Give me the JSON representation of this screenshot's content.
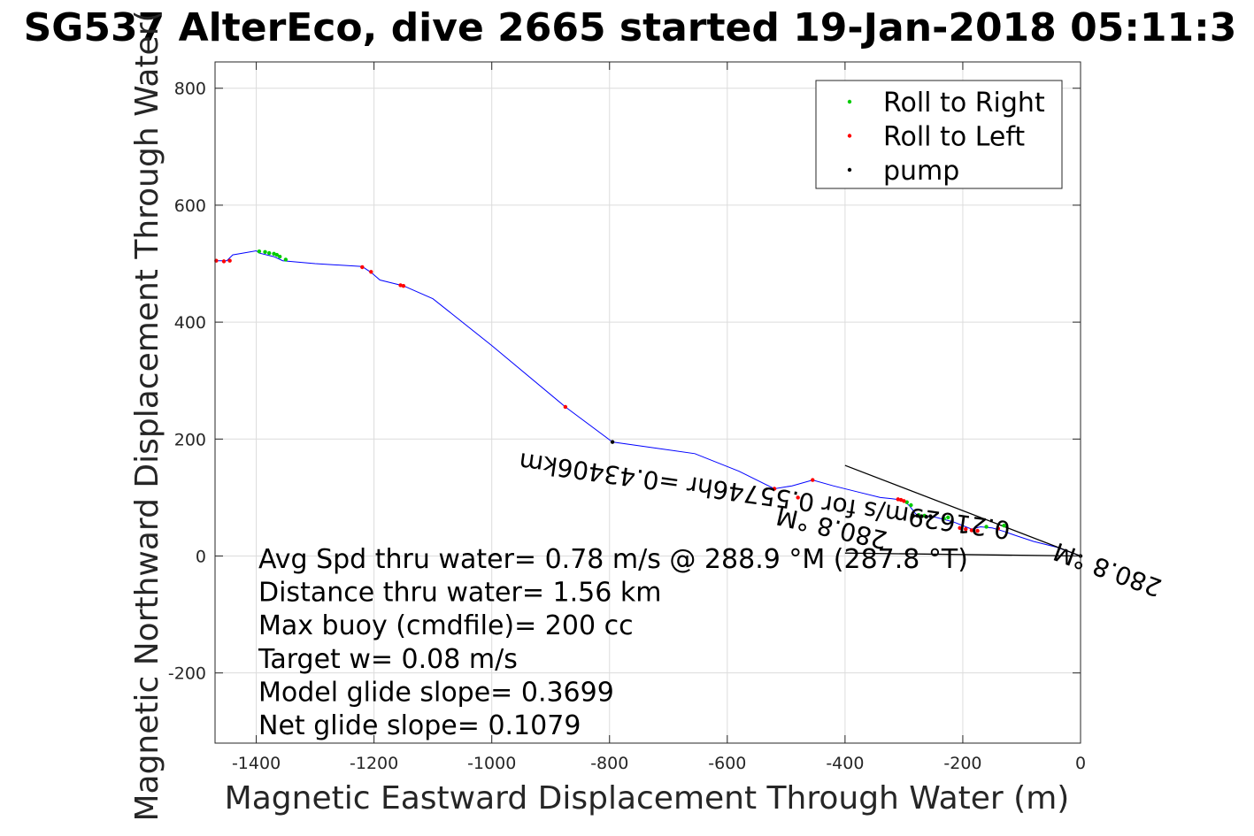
{
  "chart_data": {
    "type": "line",
    "title": "SG537 AlterEco, dive 2665 started 19-Jan-2018 05:11:3",
    "xlabel": "Magnetic Eastward Displacement Through Water (m)",
    "ylabel": "Magnetic Northward Displacement Through Water(",
    "xlim": [
      -1470,
      0
    ],
    "ylim": [
      -320,
      845
    ],
    "xticks": [
      -1400,
      -1200,
      -1000,
      -800,
      -600,
      -400,
      -200,
      0
    ],
    "yticks": [
      -200,
      0,
      200,
      400,
      600,
      800
    ],
    "xtick_labels": [
      "-1400",
      "-1200",
      "-1000",
      "-800",
      "-600",
      "-400",
      "-200",
      "0"
    ],
    "ytick_labels": [
      "-200",
      "0",
      "200",
      "400",
      "600",
      "800"
    ],
    "grid": true,
    "legend_position": "top-right",
    "legend": [
      {
        "label": "Roll to Right",
        "color": "#00cc00"
      },
      {
        "label": "Roll to Left",
        "color": "#ff0000"
      },
      {
        "label": "pump",
        "color": "#000000"
      }
    ],
    "track_color": "#0000ff",
    "track": {
      "x": [
        0,
        -40,
        -80,
        -110,
        -130,
        -150,
        -170,
        -185,
        -200,
        -215,
        -230,
        -245,
        -260,
        -270,
        -280,
        -290,
        -300,
        -320,
        -340,
        -380,
        -420,
        -455,
        -490,
        -520,
        -580,
        -655,
        -795,
        -875,
        -1000,
        -1100,
        -1150,
        -1190,
        -1205,
        -1220,
        -1300,
        -1355,
        -1370,
        -1395,
        -1400,
        -1440,
        -1450,
        -1470
      ],
      "y": [
        0,
        15,
        25,
        35,
        42,
        48,
        50,
        46,
        52,
        58,
        62,
        66,
        68,
        67,
        72,
        85,
        95,
        98,
        100,
        110,
        120,
        130,
        120,
        115,
        145,
        175,
        195,
        255,
        360,
        440,
        462,
        472,
        485,
        495,
        500,
        505,
        512,
        518,
        522,
        515,
        505,
        505
      ]
    },
    "roll_right": {
      "x": [
        -130,
        -160,
        -225,
        -232,
        -265,
        -275,
        -288,
        -295,
        -1350,
        -1360,
        -1365,
        -1370,
        -1378,
        -1385,
        -1395
      ],
      "y": [
        52,
        50,
        66,
        64,
        69,
        70,
        87,
        92,
        507,
        512,
        515,
        517,
        518,
        520,
        521
      ]
    },
    "roll_left": {
      "x": [
        -140,
        -175,
        -185,
        -195,
        -205,
        -300,
        -305,
        -310,
        -455,
        -480,
        -520,
        -875,
        -1150,
        -1155,
        -1205,
        -1220,
        -1445,
        -1455,
        -1468
      ],
      "y": [
        47,
        43,
        44,
        46,
        48,
        94,
        96,
        97,
        130,
        100,
        115,
        255,
        462,
        463,
        486,
        494,
        505,
        504,
        505
      ]
    },
    "pump": {
      "x": [
        0,
        -255,
        -262,
        -270,
        -277,
        -285,
        -795
      ],
      "y": [
        0,
        68,
        67,
        68,
        69,
        70,
        195
      ]
    },
    "current_line": {
      "x": [
        0,
        -400
      ],
      "y": [
        0,
        155
      ]
    },
    "mean_line": {
      "x": [
        0,
        -400
      ],
      "y": [
        0,
        5
      ]
    },
    "annotations": [
      "Avg Spd thru water=  0.78 m/s @ 288.9 °M (287.8 °T)",
      "Distance thru water=  1.56 km",
      "Max buoy (cmdfile)= 200 cc",
      "Target w= 0.08 m/s",
      "Model glide slope= 0.3699",
      "Net glide slope= 0.1079"
    ],
    "flipped_annotations": [
      "0.21629m/s for 0.55746hr =0.43406km",
      "280.8 °M",
      "280.8 °M"
    ]
  }
}
